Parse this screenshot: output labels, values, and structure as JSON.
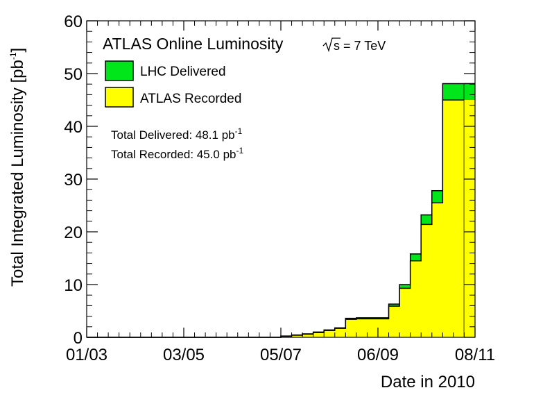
{
  "chart_data": {
    "type": "area",
    "title": "ATLAS Online Luminosity",
    "energy_label": "s = 7 TeV",
    "xlabel": "Date in 2010",
    "ylabel": "Total Integrated Luminosity [pb",
    "ylabel_sup": "-1",
    "ylabel_close": "]",
    "ylim": [
      0,
      60
    ],
    "y_ticks": [
      0,
      10,
      20,
      30,
      40,
      50,
      60
    ],
    "xlim": [
      "2010-03-01",
      "2010-11-08"
    ],
    "x_ticks": [
      {
        "label": "01/03",
        "date": "2010-03-01"
      },
      {
        "label": "03/05",
        "date": "2010-05-03"
      },
      {
        "label": "05/07",
        "date": "2010-07-05"
      },
      {
        "label": "06/09",
        "date": "2010-09-06"
      },
      {
        "label": "08/11",
        "date": "2010-11-08"
      }
    ],
    "legend": "top-left",
    "series": [
      {
        "name": "LHC Delivered",
        "color": "#00e61a",
        "bins": [
          {
            "start": "2010-07-05",
            "end": "2010-07-12",
            "value": 0.25
          },
          {
            "start": "2010-07-12",
            "end": "2010-07-19",
            "value": 0.45
          },
          {
            "start": "2010-07-19",
            "end": "2010-07-26",
            "value": 0.65
          },
          {
            "start": "2010-07-26",
            "end": "2010-08-02",
            "value": 1.0
          },
          {
            "start": "2010-08-02",
            "end": "2010-08-09",
            "value": 1.4
          },
          {
            "start": "2010-08-09",
            "end": "2010-08-16",
            "value": 1.8
          },
          {
            "start": "2010-08-16",
            "end": "2010-08-23",
            "value": 3.6
          },
          {
            "start": "2010-08-23",
            "end": "2010-08-30",
            "value": 3.7
          },
          {
            "start": "2010-08-30",
            "end": "2010-09-06",
            "value": 3.7
          },
          {
            "start": "2010-09-06",
            "end": "2010-09-13",
            "value": 3.7
          },
          {
            "start": "2010-09-13",
            "end": "2010-09-20",
            "value": 6.3
          },
          {
            "start": "2010-09-20",
            "end": "2010-09-27",
            "value": 10.0
          },
          {
            "start": "2010-09-27",
            "end": "2010-10-04",
            "value": 15.8
          },
          {
            "start": "2010-10-04",
            "end": "2010-10-11",
            "value": 23.2
          },
          {
            "start": "2010-10-11",
            "end": "2010-10-18",
            "value": 27.8
          },
          {
            "start": "2010-10-18",
            "end": "2010-11-01",
            "value": 48.1
          }
        ]
      },
      {
        "name": "ATLAS Recorded",
        "color": "#ffff00",
        "bins": [
          {
            "start": "2010-07-05",
            "end": "2010-07-12",
            "value": 0.2
          },
          {
            "start": "2010-07-12",
            "end": "2010-07-19",
            "value": 0.4
          },
          {
            "start": "2010-07-19",
            "end": "2010-07-26",
            "value": 0.6
          },
          {
            "start": "2010-07-26",
            "end": "2010-08-02",
            "value": 0.9
          },
          {
            "start": "2010-08-02",
            "end": "2010-08-09",
            "value": 1.3
          },
          {
            "start": "2010-08-09",
            "end": "2010-08-16",
            "value": 1.7
          },
          {
            "start": "2010-08-16",
            "end": "2010-08-23",
            "value": 3.4
          },
          {
            "start": "2010-08-23",
            "end": "2010-08-30",
            "value": 3.5
          },
          {
            "start": "2010-08-30",
            "end": "2010-09-06",
            "value": 3.5
          },
          {
            "start": "2010-09-06",
            "end": "2010-09-13",
            "value": 3.5
          },
          {
            "start": "2010-09-13",
            "end": "2010-09-20",
            "value": 5.9
          },
          {
            "start": "2010-09-20",
            "end": "2010-09-27",
            "value": 9.3
          },
          {
            "start": "2010-09-27",
            "end": "2010-10-04",
            "value": 14.5
          },
          {
            "start": "2010-10-04",
            "end": "2010-10-11",
            "value": 21.4
          },
          {
            "start": "2010-10-11",
            "end": "2010-10-18",
            "value": 25.5
          },
          {
            "start": "2010-10-18",
            "end": "2010-11-01",
            "value": 45.0
          }
        ]
      }
    ],
    "annotations": [
      {
        "text": "Total Delivered: 48.1 pb",
        "sup": "-1"
      },
      {
        "text": "Total Recorded: 45.0 pb",
        "sup": "-1"
      }
    ]
  }
}
